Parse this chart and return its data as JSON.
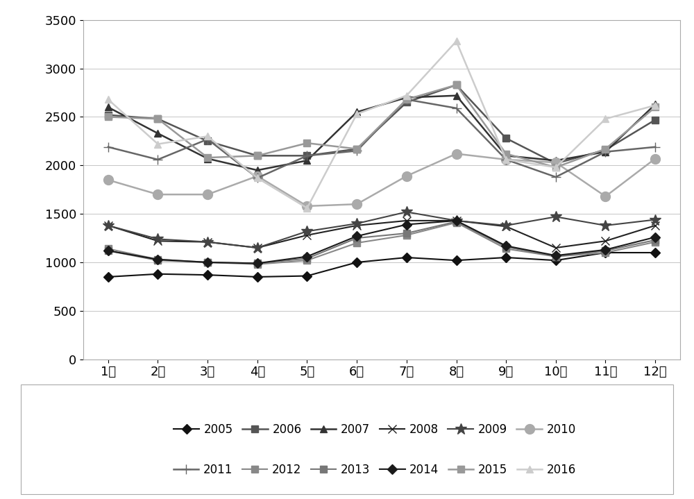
{
  "months": [
    "1月",
    "2月",
    "3月",
    "4月",
    "5月",
    "6月",
    "7月",
    "8月",
    "9月",
    "10月",
    "11月",
    "12月"
  ],
  "series": {
    "2005": [
      850,
      880,
      870,
      850,
      860,
      1000,
      1050,
      1020,
      1050,
      1020,
      1100,
      1100
    ],
    "2006": [
      2520,
      2480,
      2250,
      2100,
      2100,
      2170,
      2650,
      2830,
      2280,
      2020,
      2160,
      2470
    ],
    "2007": [
      2600,
      2330,
      2070,
      1950,
      2050,
      2550,
      2700,
      2720,
      2100,
      2050,
      2140,
      2630
    ],
    "2008": [
      1380,
      1220,
      1210,
      1150,
      1280,
      1380,
      1430,
      1430,
      1370,
      1150,
      1220,
      1380
    ],
    "2009": [
      1380,
      1240,
      1210,
      1150,
      1320,
      1400,
      1520,
      1430,
      1380,
      1470,
      1380,
      1440
    ],
    "2010": [
      1850,
      1700,
      1700,
      1890,
      1580,
      1600,
      1890,
      2120,
      2060,
      2030,
      1680,
      2070
    ],
    "2011": [
      2190,
      2060,
      2270,
      1870,
      2100,
      2150,
      2680,
      2590,
      2060,
      1880,
      2140,
      2190
    ],
    "2012": [
      1140,
      1030,
      1000,
      980,
      1020,
      1200,
      1280,
      1410,
      1140,
      1060,
      1100,
      1210
    ],
    "2013": [
      1120,
      1020,
      1000,
      990,
      1040,
      1250,
      1300,
      1420,
      1160,
      1060,
      1120,
      1230
    ],
    "2014": [
      1120,
      1030,
      1000,
      990,
      1060,
      1270,
      1390,
      1430,
      1170,
      1070,
      1130,
      1260
    ],
    "2015": [
      2500,
      2480,
      2080,
      2100,
      2230,
      2170,
      2680,
      2830,
      2120,
      1980,
      2170,
      2600
    ],
    "2016": [
      2680,
      2220,
      2300,
      1870,
      1560,
      2530,
      2720,
      3280,
      2060,
      1980,
      2480,
      2620
    ]
  },
  "colors": {
    "2005": "#111111",
    "2006": "#555555",
    "2007": "#333333",
    "2008": "#222222",
    "2009": "#444444",
    "2010": "#aaaaaa",
    "2011": "#666666",
    "2012": "#888888",
    "2013": "#777777",
    "2014": "#1a1a1a",
    "2015": "#999999",
    "2016": "#cccccc"
  },
  "markers": {
    "2005": "D",
    "2006": "s",
    "2007": "^",
    "2008": "x",
    "2009": "*",
    "2010": "o",
    "2011": "+",
    "2012": "s",
    "2013": "s",
    "2014": "D",
    "2015": "s",
    "2016": "^"
  },
  "marker_sizes": {
    "2005": 7,
    "2006": 7,
    "2007": 7,
    "2008": 9,
    "2009": 12,
    "2010": 10,
    "2011": 10,
    "2012": 7,
    "2013": 7,
    "2014": 7,
    "2015": 7,
    "2016": 7
  },
  "line_widths": {
    "2005": 1.5,
    "2006": 1.8,
    "2007": 1.8,
    "2008": 1.5,
    "2009": 1.5,
    "2010": 1.8,
    "2011": 1.8,
    "2012": 1.5,
    "2013": 1.5,
    "2014": 1.5,
    "2015": 1.8,
    "2016": 1.8
  },
  "series_order": [
    "2005",
    "2006",
    "2007",
    "2008",
    "2009",
    "2010",
    "2011",
    "2012",
    "2013",
    "2014",
    "2015",
    "2016"
  ],
  "legend_row1": [
    "2005",
    "2006",
    "2007",
    "2008",
    "2009",
    "2010"
  ],
  "legend_row2": [
    "2011",
    "2012",
    "2013",
    "2014",
    "2015",
    "2016"
  ],
  "ylim": [
    0,
    3500
  ],
  "yticks": [
    0,
    500,
    1000,
    1500,
    2000,
    2500,
    3000,
    3500
  ],
  "tick_fontsize": 13,
  "legend_fontsize": 12,
  "background_color": "#ffffff"
}
